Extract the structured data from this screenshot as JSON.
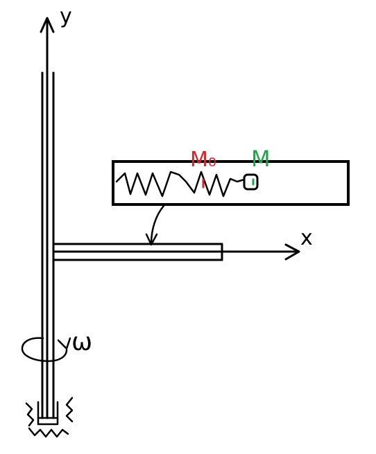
{
  "labels": {
    "y_axis": "y",
    "x_axis": "x",
    "angular_velocity": "ω",
    "mass_m0": "M₀",
    "mass_m": "M"
  },
  "colors": {
    "ink": "#000000",
    "m0": "#e0202a",
    "m": "#22a24a",
    "background": "#ffffff"
  }
}
